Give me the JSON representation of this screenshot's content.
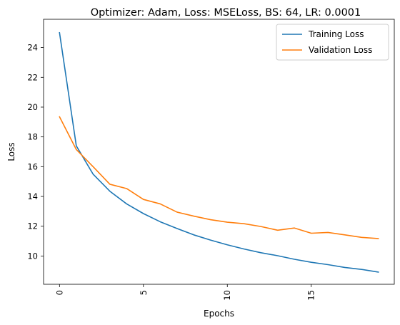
{
  "chart_data": {
    "type": "line",
    "title": "Optimizer: Adam, Loss: MSELoss, BS: 64, LR: 0.0001",
    "xlabel": "Epochs",
    "ylabel": "Loss",
    "xlim": [
      -0.95,
      19.95
    ],
    "ylim": [
      8.1,
      25.9
    ],
    "xticks": [
      0,
      5,
      10,
      15
    ],
    "yticks": [
      10,
      12,
      14,
      16,
      18,
      20,
      22,
      24
    ],
    "xtick_rotation": "vertical",
    "grid": false,
    "legend": "top-right",
    "x": [
      0,
      1,
      2,
      3,
      4,
      5,
      6,
      7,
      8,
      9,
      10,
      11,
      12,
      13,
      14,
      15,
      16,
      17,
      18,
      19
    ],
    "series": [
      {
        "name": "Training Loss",
        "color": "#1f77b4",
        "values": [
          25.0,
          17.4,
          15.5,
          14.35,
          13.5,
          12.85,
          12.3,
          11.85,
          11.42,
          11.07,
          10.75,
          10.47,
          10.22,
          10.02,
          9.78,
          9.58,
          9.42,
          9.23,
          9.1,
          8.92
        ]
      },
      {
        "name": "Validation Loss",
        "color": "#ff7f0e",
        "values": [
          19.35,
          17.15,
          16.0,
          14.82,
          14.53,
          13.8,
          13.5,
          12.95,
          12.68,
          12.44,
          12.27,
          12.17,
          11.98,
          11.73,
          11.88,
          11.53,
          11.58,
          11.42,
          11.25,
          11.17
        ]
      }
    ]
  }
}
